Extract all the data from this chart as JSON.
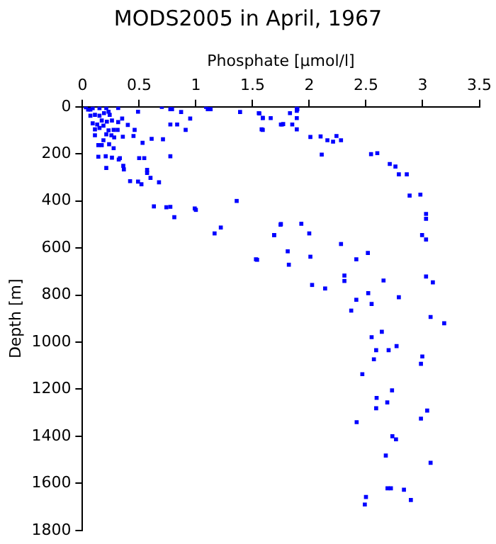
{
  "chart_data": {
    "type": "scatter",
    "title": "MODS2005 in April, 1967",
    "xlabel": "Phosphate [μmol/l]",
    "ylabel": "Depth [m]",
    "xlim": [
      0,
      3.5
    ],
    "xticks": [
      0,
      0.5,
      1,
      1.5,
      2,
      2.5,
      3,
      3.5
    ],
    "ylim": [
      1800,
      0
    ],
    "yticks": [
      0,
      200,
      400,
      600,
      800,
      1000,
      1200,
      1400,
      1600,
      1800
    ],
    "grid": false,
    "legend": false,
    "marker": "square",
    "series": [
      {
        "color": "#0000ff",
        "x": [
          0.03,
          0.07,
          0.315,
          0.49,
          0.7,
          0.775,
          0.79,
          0.87,
          0.95,
          0.775,
          0.835,
          0.91,
          1.09,
          1.105,
          1.13,
          1.39,
          1.56,
          1.59,
          1.59,
          1.76,
          0.35,
          0.315,
          0.4,
          0.46,
          0.45,
          0.53,
          0.61,
          0.71,
          0.775,
          0.545,
          0.5,
          0.33,
          0.36,
          0.365,
          0.57,
          0.57,
          0.6,
          0.675,
          0.49,
          0.52,
          0.42,
          0.63,
          0.74,
          0.775,
          0.81,
          0.99,
          1.0,
          1.36,
          1.22,
          1.165,
          1.75,
          1.69,
          1.53,
          0.14,
          0.205,
          0.21,
          0.26,
          0.32,
          0.14,
          0.17,
          0.235,
          0.275,
          0.185,
          0.28,
          0.356,
          0.31,
          0.275,
          0.23,
          0.15,
          0.11,
          0.09,
          0.13,
          0.17,
          0.215,
          0.07,
          0.11,
          0.15,
          0.19,
          0.23,
          0.05,
          0.09,
          0.15,
          0.21,
          0.24,
          0.26,
          0.21,
          0.255,
          0.11,
          0.185,
          1.555,
          1.59,
          1.66,
          1.58,
          1.75,
          1.77,
          1.83,
          1.85,
          1.89,
          1.89,
          1.895,
          1.89,
          1.89,
          2.01,
          2.1,
          2.16,
          2.21,
          2.24,
          2.28,
          2.11,
          2.545,
          2.6,
          2.71,
          2.76,
          2.79,
          2.86,
          2.885,
          2.98,
          3.03,
          3.03,
          2.995,
          3.03,
          1.747,
          1.93,
          1.69,
          2.0,
          1.81,
          2.28,
          2.517,
          2.01,
          2.415,
          1.82,
          2.31,
          2.31,
          2.025,
          2.14,
          2.655,
          3.03,
          3.09,
          1.54,
          2.52,
          2.79,
          2.415,
          2.55,
          2.37,
          3.07,
          3.19,
          2.64,
          2.55,
          2.77,
          2.59,
          2.7,
          2.57,
          2.997,
          2.985,
          2.468,
          2.73,
          2.594,
          2.688,
          2.59,
          3.04,
          2.985,
          2.418,
          2.733,
          2.765,
          2.675,
          3.07,
          2.69,
          2.72,
          2.835,
          2.896,
          2.5,
          2.49
        ],
        "values": [
          2,
          12,
          5,
          21,
          0,
          10,
          10,
          22,
          50,
          75,
          75,
          98,
          0,
          10,
          10,
          22,
          28,
          47,
          98,
          75,
          50,
          65,
          77,
          98,
          124,
          153,
          136,
          138,
          210,
          218,
          218,
          218,
          251,
          266,
          268,
          281,
          302,
          321,
          318,
          329,
          316,
          423,
          427,
          425,
          469,
          432,
          438,
          400,
          513,
          538,
          498,
          545,
          648,
          212,
          210,
          260,
          216,
          224,
          163,
          163,
          159,
          176,
          142,
          130,
          127,
          98,
          98,
          100,
          90,
          96,
          70,
          75,
          58,
          63,
          38,
          34,
          38,
          27,
          21,
          12,
          6,
          6,
          6,
          34,
          58,
          117,
          121,
          121,
          80,
          27,
          48,
          48,
          96,
          75,
          73,
          27,
          75,
          17,
          2,
          10,
          48,
          96,
          128,
          126,
          142,
          148,
          124,
          142,
          203,
          201,
          197,
          243,
          254,
          287,
          287,
          377,
          373,
          455,
          476,
          545,
          564,
          501,
          497,
          545,
          538,
          614,
          583,
          621,
          637,
          648,
          671,
          717,
          740,
          757,
          772,
          738,
          721,
          746,
          650,
          792,
          809,
          820,
          838,
          866,
          893,
          920,
          956,
          979,
          1017,
          1034,
          1034,
          1073,
          1061,
          1092,
          1136,
          1205,
          1237,
          1256,
          1281,
          1291,
          1325,
          1340,
          1400,
          1413,
          1482,
          1513,
          1621,
          1621,
          1627,
          1671,
          1658,
          1690
        ]
      }
    ]
  }
}
